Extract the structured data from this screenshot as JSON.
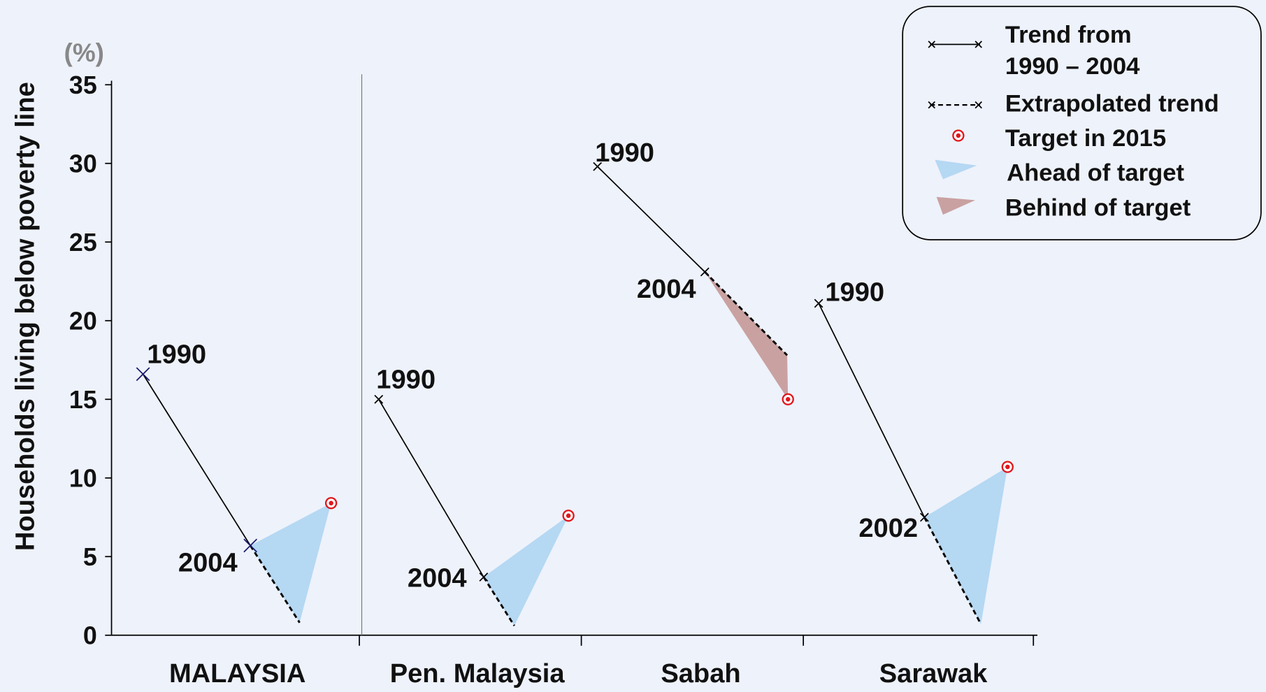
{
  "chart_data": {
    "type": "trend-panels",
    "y_label": "Households  living below poverty line",
    "unit": "(%)",
    "ylim": [
      0,
      35
    ],
    "yticks": [
      0,
      5,
      10,
      15,
      20,
      25,
      30,
      35
    ],
    "regions": [
      {
        "name": "MALAYSIA",
        "points": [
          {
            "label": "1990",
            "value": 16.6
          },
          {
            "label": "2004",
            "value": 5.7
          }
        ],
        "extrapolated": 0.8,
        "target": 8.4,
        "status": "ahead"
      },
      {
        "name": "Pen. Malaysia",
        "points": [
          {
            "label": "1990",
            "value": 15.0
          },
          {
            "label": "2004",
            "value": 3.7
          }
        ],
        "extrapolated": 0.6,
        "target": 7.6,
        "status": "ahead"
      },
      {
        "name": "Sabah",
        "points": [
          {
            "label": "1990",
            "value": 29.8
          },
          {
            "label": "2004",
            "value": 23.1
          }
        ],
        "extrapolated": 17.8,
        "target": 15.0,
        "status": "behind"
      },
      {
        "name": "Sarawak",
        "points": [
          {
            "label": "1990",
            "value": 21.1
          },
          {
            "label": "2002",
            "value": 7.5
          }
        ],
        "extrapolated": 0.7,
        "target": 10.7,
        "status": "ahead"
      }
    ],
    "colors": {
      "ahead": "#b5d8f3",
      "behind": "#c9a1a1",
      "target": "#e0161b",
      "line": "#000000"
    },
    "legend": {
      "trend": [
        "Trend from",
        "1990 – 2004"
      ],
      "extrapolated": "Extrapolated trend",
      "target": "Target in 2015",
      "ahead": "Ahead of target",
      "behind": "Behind of target"
    }
  }
}
